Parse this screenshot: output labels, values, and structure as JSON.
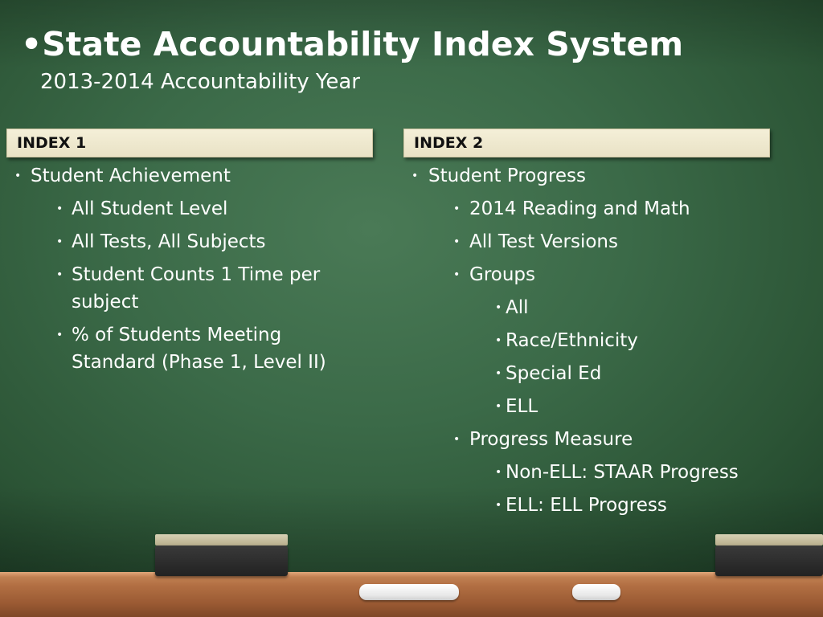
{
  "slide": {
    "title": "•State Accountability Index System",
    "subtitle": "2013-2014 Accountability Year"
  },
  "index1": {
    "header": "INDEX 1",
    "items": [
      "Student Achievement",
      "All Student Level",
      "All Tests, All Subjects",
      "Student Counts 1 Time per subject",
      "% of Students Meeting Standard (Phase 1, Level II)"
    ]
  },
  "index2": {
    "header": "INDEX 2",
    "items": [
      "Student Progress",
      "2014 Reading and Math",
      "All Test Versions",
      "Groups",
      "All",
      "Race/Ethnicity",
      "Special Ed",
      "ELL",
      "Progress Measure",
      "Non-ELL:  STAAR Progress",
      "ELL:  ELL Progress"
    ]
  },
  "bullet_char": "•"
}
